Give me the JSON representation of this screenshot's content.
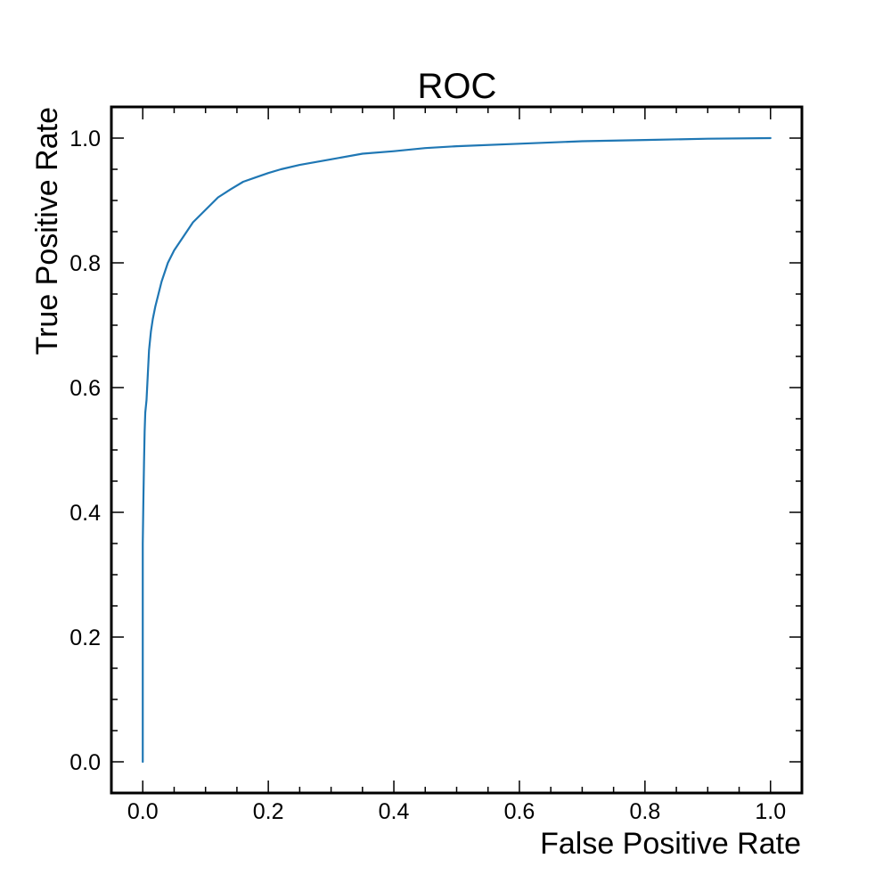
{
  "chart_data": {
    "type": "line",
    "title": "ROC",
    "xlabel": "False Positive Rate",
    "ylabel": "True Positive Rate",
    "xlim": [
      -0.05,
      1.05
    ],
    "ylim": [
      -0.05,
      1.05
    ],
    "xticks": [
      "0.0",
      "0.2",
      "0.4",
      "0.6",
      "0.8",
      "1.0"
    ],
    "yticks": [
      "0.0",
      "0.2",
      "0.4",
      "0.6",
      "0.8",
      "1.0"
    ],
    "xtick_values": [
      0.0,
      0.2,
      0.4,
      0.6,
      0.8,
      1.0
    ],
    "ytick_values": [
      0.0,
      0.2,
      0.4,
      0.6,
      0.8,
      1.0
    ],
    "minor_step": 0.05,
    "grid": false,
    "legend": "none",
    "series": [
      {
        "color": "#1f77b4",
        "x": [
          0.0,
          0.0,
          0.0,
          0.001,
          0.002,
          0.003,
          0.004,
          0.006,
          0.008,
          0.01,
          0.013,
          0.016,
          0.02,
          0.025,
          0.03,
          0.04,
          0.05,
          0.06,
          0.07,
          0.08,
          0.09,
          0.1,
          0.12,
          0.14,
          0.16,
          0.18,
          0.2,
          0.22,
          0.25,
          0.3,
          0.35,
          0.4,
          0.45,
          0.5,
          0.6,
          0.7,
          0.8,
          0.9,
          1.0
        ],
        "y": [
          0.0,
          0.2,
          0.35,
          0.42,
          0.48,
          0.53,
          0.56,
          0.58,
          0.62,
          0.66,
          0.69,
          0.71,
          0.73,
          0.75,
          0.77,
          0.8,
          0.82,
          0.835,
          0.85,
          0.865,
          0.875,
          0.885,
          0.905,
          0.918,
          0.93,
          0.937,
          0.944,
          0.95,
          0.957,
          0.966,
          0.975,
          0.979,
          0.984,
          0.987,
          0.991,
          0.995,
          0.997,
          0.999,
          1.0
        ]
      }
    ]
  }
}
